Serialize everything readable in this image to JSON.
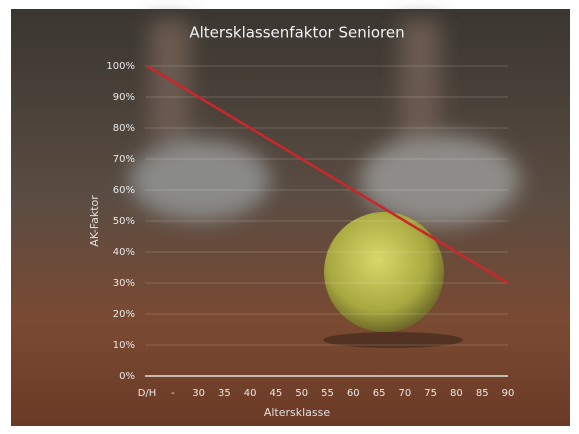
{
  "chart_data": {
    "type": "line",
    "title": "Altersklassenfaktor Senioren",
    "x_label": "Altersklasse",
    "y_label": "AK-Faktor",
    "categories": [
      "D/H",
      "-",
      "30",
      "35",
      "40",
      "45",
      "50",
      "55",
      "60",
      "65",
      "70",
      "75",
      "80",
      "85",
      "90"
    ],
    "series": [
      {
        "name": "AK-Faktor",
        "color": "#c8282c",
        "values": [
          100,
          95,
          90,
          85,
          80,
          75,
          70,
          65,
          60,
          55,
          50,
          45,
          40,
          35,
          30
        ]
      }
    ],
    "ylim": [
      0,
      100
    ],
    "yticks": [
      {
        "value": 0,
        "label": "0%"
      },
      {
        "value": 10,
        "label": "10%"
      },
      {
        "value": 20,
        "label": "20%"
      },
      {
        "value": 30,
        "label": "30%"
      },
      {
        "value": 40,
        "label": "40%"
      },
      {
        "value": 50,
        "label": "50%"
      },
      {
        "value": 60,
        "label": "60%"
      },
      {
        "value": 70,
        "label": "70%"
      },
      {
        "value": 80,
        "label": "80%"
      },
      {
        "value": 90,
        "label": "90%"
      },
      {
        "value": 100,
        "label": "100%"
      }
    ],
    "grid": true
  }
}
